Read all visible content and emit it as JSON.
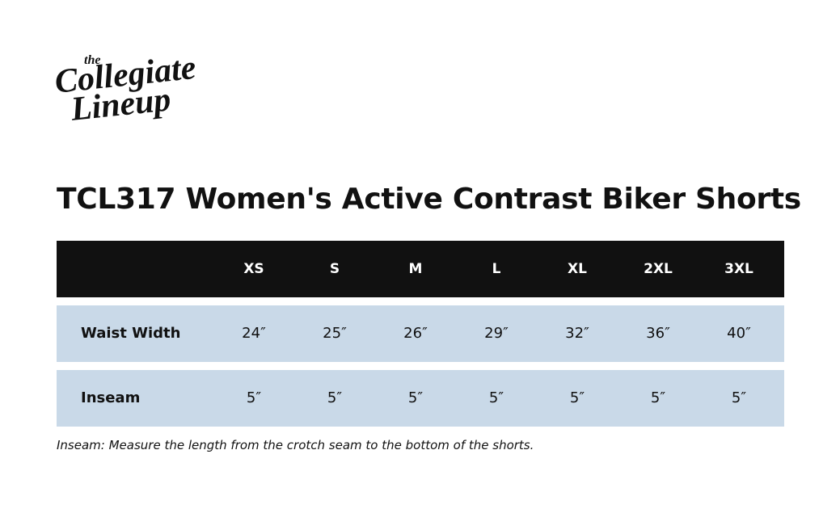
{
  "logo": {
    "small": "the",
    "line1": "Collegiate",
    "line2": "Lineup"
  },
  "title": "TCL317 Women's Active Contrast Biker Shorts",
  "table": {
    "header": [
      "XS",
      "S",
      "M",
      "L",
      "XL",
      "2XL",
      "3XL"
    ],
    "rows": [
      {
        "label": "Waist Width",
        "cells": [
          "24″",
          "25″",
          "26″",
          "29″",
          "32″",
          "36″",
          "40″"
        ]
      },
      {
        "label": "Inseam",
        "cells": [
          "5″",
          "5″",
          "5″",
          "5″",
          "5″",
          "5″",
          "5″"
        ]
      }
    ]
  },
  "note": "Inseam: Measure the length from the crotch seam to the bottom of the shorts."
}
